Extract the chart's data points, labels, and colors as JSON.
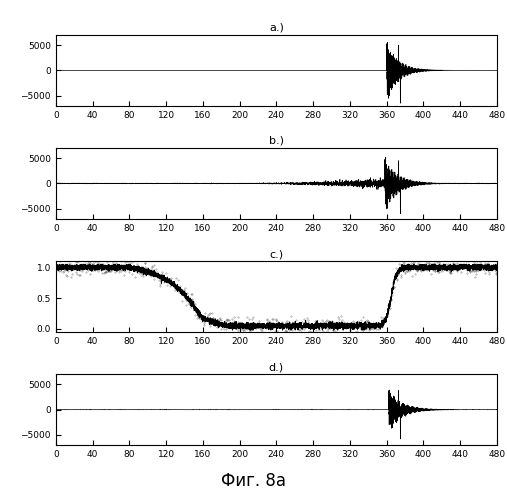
{
  "xlim": [
    0,
    480
  ],
  "xticks": [
    0,
    40,
    80,
    120,
    160,
    200,
    240,
    280,
    320,
    360,
    400,
    440,
    480
  ],
  "subplots": [
    "a.)",
    "b.)",
    "c.)",
    "d.)"
  ],
  "ylim_ab": [
    -7000,
    7000
  ],
  "ylim_c": [
    -0.05,
    1.1
  ],
  "ylim_d": [
    -7000,
    7000
  ],
  "yticks_ab": [
    -5000,
    0,
    5000
  ],
  "yticks_c": [
    0,
    0.5,
    1
  ],
  "yticks_d": [
    -5000,
    0,
    5000
  ],
  "fig_label": "Фиг. 8a",
  "background_color": "#ffffff",
  "line_color": "#000000"
}
